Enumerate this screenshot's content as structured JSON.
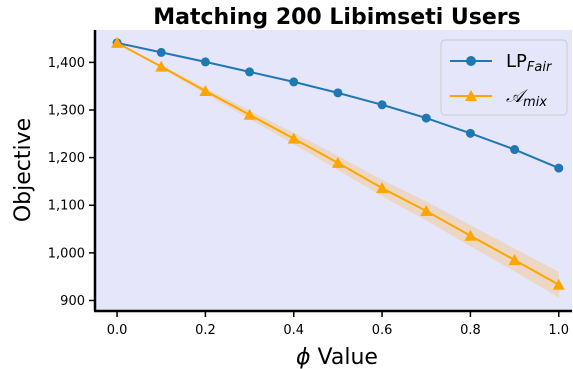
{
  "chart_data": {
    "type": "line",
    "title": "Matching 200 Libimseti Users",
    "xlabel_symbol": "ϕ",
    "xlabel_text": " Value",
    "ylabel": "Objective",
    "xlim": [
      -0.05,
      1.03
    ],
    "ylim": [
      880,
      1468
    ],
    "x_ticks": [
      "0.0",
      "0.2",
      "0.4",
      "0.6",
      "0.8",
      "1.0"
    ],
    "x_tick_values": [
      0,
      0.2,
      0.4,
      0.6,
      0.8,
      1.0
    ],
    "y_ticks": [
      "900",
      "1,000",
      "1,100",
      "1,200",
      "1,300",
      "1,400"
    ],
    "y_tick_values": [
      900,
      1000,
      1100,
      1200,
      1300,
      1400
    ],
    "grid": false,
    "legend_position": "top-right",
    "background_color": "#e6e6fa",
    "x": [
      0.0,
      0.1,
      0.2,
      0.3,
      0.4,
      0.5,
      0.6,
      0.7,
      0.8,
      0.9,
      1.0
    ],
    "series": [
      {
        "name_main": "LP",
        "name_sub": "Fair",
        "color": "#1f77b4",
        "marker": "circle",
        "values": [
          1441,
          1421,
          1401,
          1380,
          1359,
          1336,
          1311,
          1283,
          1251,
          1217,
          1178
        ]
      },
      {
        "name_main": "𝒜",
        "name_sub": "mix",
        "color": "#ffa500",
        "marker": "triangle",
        "values": [
          1441,
          1391,
          1340,
          1290,
          1240,
          1189,
          1136,
          1088,
          1036,
          985,
          933
        ],
        "band_lower": [
          1441,
          1388,
          1334,
          1281,
          1228,
          1174,
          1119,
          1068,
          1014,
          961,
          906
        ],
        "band_upper": [
          1441,
          1394,
          1346,
          1299,
          1252,
          1204,
          1153,
          1108,
          1058,
          1009,
          960
        ]
      }
    ]
  }
}
